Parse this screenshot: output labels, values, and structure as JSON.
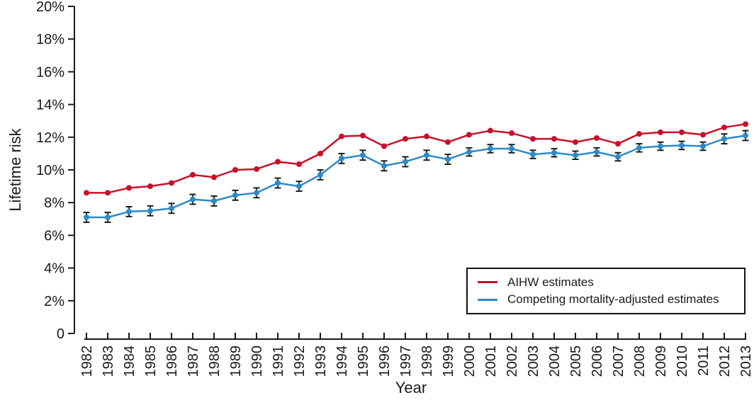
{
  "chart_data": {
    "type": "line",
    "xlabel": "Year",
    "ylabel": "Lifetime risk",
    "x": [
      1982,
      1983,
      1984,
      1985,
      1986,
      1987,
      1988,
      1989,
      1990,
      1991,
      1992,
      1993,
      1994,
      1995,
      1996,
      1997,
      1998,
      1999,
      2000,
      2001,
      2002,
      2003,
      2004,
      2005,
      2006,
      2007,
      2008,
      2009,
      2010,
      2011,
      2012,
      2013
    ],
    "ylim": [
      0,
      20
    ],
    "ytick_step": 2,
    "ytick_suffix": "%",
    "ytick_zero_label": "0",
    "grid": false,
    "legend_position": "lower-right",
    "ink_color": "#1a1a1a",
    "series": [
      {
        "name": "AIHW estimates",
        "color": "#c8102a",
        "marker": "circle",
        "values": [
          8.6,
          8.6,
          8.9,
          9.0,
          9.2,
          9.7,
          9.55,
          10.0,
          10.05,
          10.5,
          10.35,
          11.0,
          12.05,
          12.1,
          11.45,
          11.9,
          12.05,
          11.7,
          12.15,
          12.4,
          12.25,
          11.9,
          11.9,
          11.7,
          11.95,
          11.6,
          12.2,
          12.3,
          12.3,
          12.15,
          12.6,
          12.8
        ]
      },
      {
        "name": "Competing mortality-adjusted estimates",
        "color": "#2d89c8",
        "marker": "circle",
        "values": [
          7.1,
          7.1,
          7.45,
          7.5,
          7.65,
          8.2,
          8.1,
          8.45,
          8.6,
          9.2,
          9.0,
          9.7,
          10.7,
          10.9,
          10.25,
          10.5,
          10.9,
          10.65,
          11.1,
          11.3,
          11.3,
          10.95,
          11.05,
          10.9,
          11.1,
          10.8,
          11.35,
          11.45,
          11.5,
          11.45,
          11.9,
          12.1
        ],
        "error": [
          0.3,
          0.3,
          0.3,
          0.3,
          0.3,
          0.3,
          0.3,
          0.3,
          0.3,
          0.3,
          0.3,
          0.3,
          0.3,
          0.3,
          0.3,
          0.3,
          0.3,
          0.3,
          0.25,
          0.25,
          0.25,
          0.25,
          0.25,
          0.25,
          0.25,
          0.25,
          0.25,
          0.25,
          0.25,
          0.25,
          0.3,
          0.3
        ],
        "error_color": "#1a1a1a"
      }
    ]
  }
}
